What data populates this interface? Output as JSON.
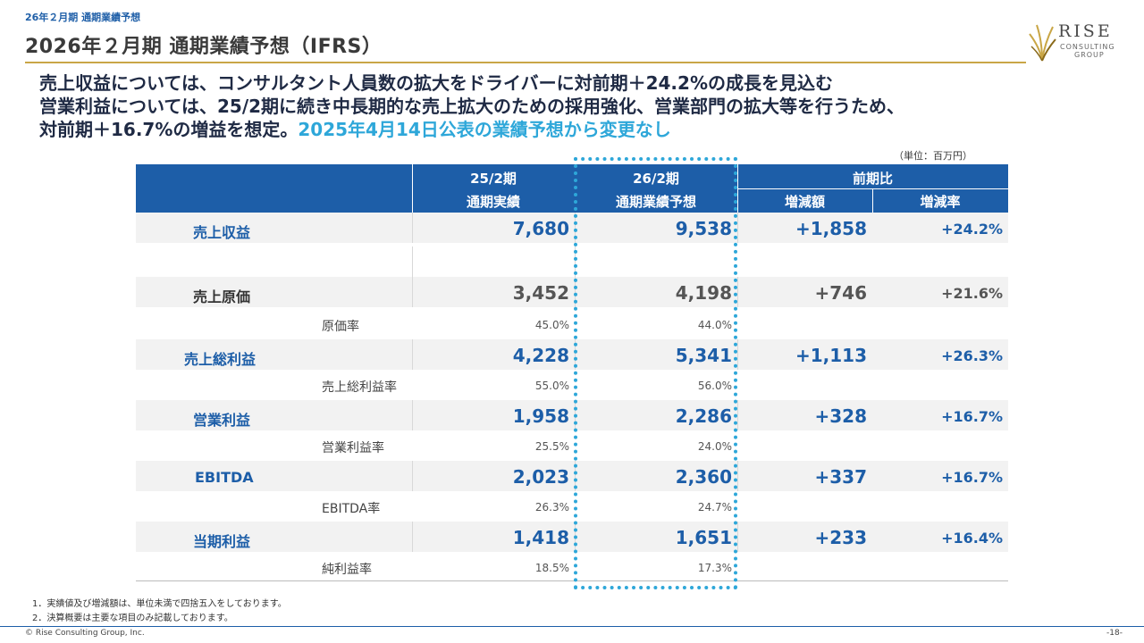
{
  "header": {
    "breadcrumb": "26年２月期 通期業績予想",
    "title": "2026年２月期  通期業績予想（IFRS）"
  },
  "logo": {
    "name": "RISE",
    "line1": "CONSULTING",
    "line2": "GROUP"
  },
  "headline": {
    "line1": "売上収益については、コンサルタント人員数の拡大をドライバーに対前期＋24.2%の成長を見込む",
    "line2": "営業利益については、25/2期に続き中長期的な売上拡大のための採用強化、営業部門の拡大等を行うため、",
    "line3_main": "対前期＋16.7%の増益を想定。",
    "line3_accent": "2025年4月14日公表の業績予想から変更なし"
  },
  "unit_label": "（単位：百万円）",
  "table": {
    "headers": {
      "col1_line1": "25/2期",
      "col1_line2": "通期実績",
      "col2_line1": "26/2期",
      "col2_line2": "通期業績予想",
      "yoy": "前期比",
      "diff": "増減額",
      "rate": "増減率"
    },
    "rows": [
      {
        "label": "売上収益",
        "actual": "7,680",
        "forecast": "9,538",
        "diff": "+1,858",
        "rate": "+24.2%"
      },
      {
        "label": "売上原価",
        "actual": "3,452",
        "forecast": "4,198",
        "diff": "+746",
        "rate": "+21.6%"
      },
      {
        "label": "原価率",
        "actual": "45.0%",
        "forecast": "44.0%"
      },
      {
        "label": "売上総利益",
        "actual": "4,228",
        "forecast": "5,341",
        "diff": "+1,113",
        "rate": "+26.3%"
      },
      {
        "label": "売上総利益率",
        "actual": "55.0%",
        "forecast": "56.0%"
      },
      {
        "label": "営業利益",
        "actual": "1,958",
        "forecast": "2,286",
        "diff": "+328",
        "rate": "+16.7%"
      },
      {
        "label": "営業利益率",
        "actual": "25.5%",
        "forecast": "24.0%"
      },
      {
        "label": "EBITDA",
        "actual": "2,023",
        "forecast": "2,360",
        "diff": "+337",
        "rate": "+16.7%"
      },
      {
        "label": "EBITDA率",
        "actual": "26.3%",
        "forecast": "24.7%"
      },
      {
        "label": "当期利益",
        "actual": "1,418",
        "forecast": "1,651",
        "diff": "+233",
        "rate": "+16.4%"
      },
      {
        "label": "純利益率",
        "actual": "18.5%",
        "forecast": "17.3%"
      }
    ]
  },
  "footnotes": [
    "1．実績値及び増減額は、単位未満で四捨五入をしております。",
    "2．決算概要は主要な項目のみ記載しております。"
  ],
  "footer": {
    "copyright": "© Rise Consulting Group, Inc.",
    "page": "-18-"
  },
  "colors": {
    "header_blue": "#1d5ea8",
    "accent_cyan": "#2ea7d9",
    "gold_rule": "#c9a646"
  }
}
